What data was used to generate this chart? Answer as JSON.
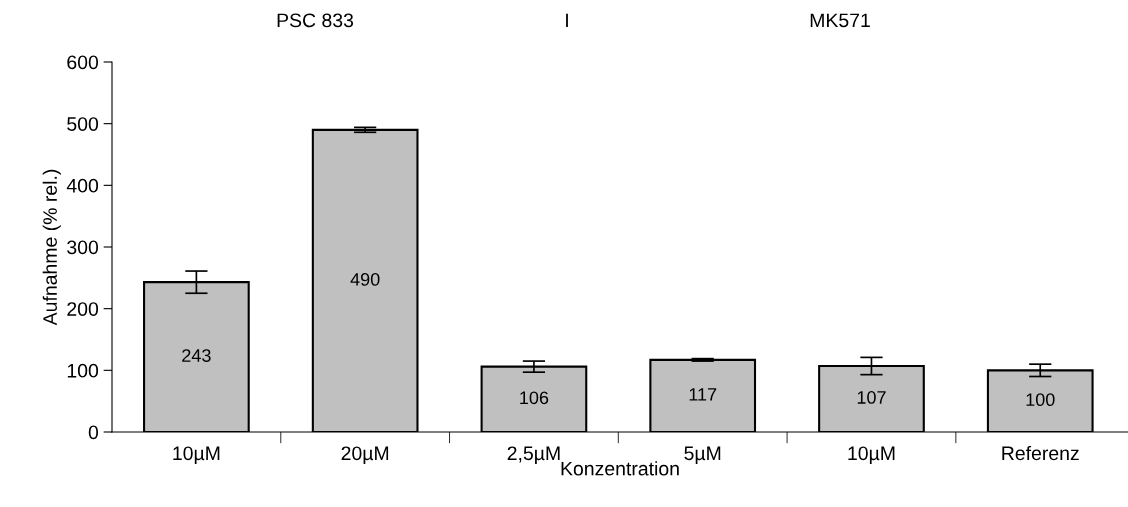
{
  "chart_data": {
    "type": "bar",
    "categories": [
      "10µM",
      "20µM",
      "2,5µM",
      "5µM",
      "10µM",
      "Referenz"
    ],
    "values": [
      243,
      490,
      106,
      117,
      107,
      100
    ],
    "errors": [
      18,
      4,
      9,
      2,
      14,
      10
    ],
    "color": "#c0c0c0",
    "data_labels": true,
    "xlabel": "Konzentration",
    "ylabel": "Aufnahme (% rel.)",
    "annotations": [
      "PSC 833",
      "I",
      "MK571"
    ],
    "ylim": [
      0,
      600
    ],
    "yticks": [
      0,
      100,
      200,
      300,
      400,
      500,
      600
    ],
    "grid": false,
    "legend": false
  }
}
